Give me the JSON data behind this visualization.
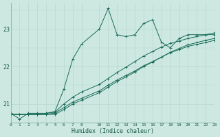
{
  "xlabel": "Humidex (Indice chaleur)",
  "bg_color": "#cce8e0",
  "line_color": "#1a6b5a",
  "grid_color_major": "#b8d8d0",
  "x_ticks": [
    0,
    1,
    2,
    3,
    4,
    5,
    6,
    7,
    8,
    10,
    11,
    12,
    13,
    14,
    15,
    16,
    17,
    18,
    19,
    20,
    21,
    22,
    23
  ],
  "x_tick_labels": [
    "0",
    "1",
    "2",
    "3",
    "4",
    "5",
    "6",
    "7",
    "8",
    "10",
    "11",
    "12",
    "13",
    "14",
    "15",
    "16",
    "17",
    "18",
    "19",
    "20",
    "21",
    "22",
    "23"
  ],
  "yticks": [
    21,
    22,
    23
  ],
  "ylim": [
    20.5,
    23.7
  ],
  "xlim": [
    0,
    23
  ],
  "line1_x": [
    0,
    1,
    2,
    3,
    4,
    5,
    6,
    7,
    8,
    10,
    11,
    12,
    13,
    14,
    15,
    16,
    17,
    18,
    19,
    20,
    21,
    22,
    23
  ],
  "line1_y": [
    20.75,
    20.6,
    20.75,
    20.75,
    20.75,
    20.8,
    21.4,
    22.2,
    22.6,
    23.0,
    23.55,
    22.85,
    22.8,
    22.85,
    23.15,
    23.25,
    22.65,
    22.5,
    22.75,
    22.85,
    22.85,
    22.85,
    22.85
  ],
  "line2_x": [
    0,
    1,
    2,
    3,
    4,
    5,
    6,
    7,
    8,
    10,
    11,
    12,
    13,
    14,
    15,
    16,
    17,
    18,
    19,
    20,
    21,
    22,
    23
  ],
  "line2_y": [
    20.72,
    20.72,
    20.72,
    20.72,
    20.72,
    20.72,
    20.85,
    21.0,
    21.1,
    21.3,
    21.45,
    21.6,
    21.72,
    21.85,
    22.0,
    22.12,
    22.25,
    22.38,
    22.48,
    22.58,
    22.64,
    22.7,
    22.75
  ],
  "line3_x": [
    0,
    1,
    2,
    3,
    4,
    5,
    6,
    7,
    8,
    10,
    11,
    12,
    13,
    14,
    15,
    16,
    17,
    18,
    19,
    20,
    21,
    22,
    23
  ],
  "line3_y": [
    20.72,
    20.72,
    20.72,
    20.72,
    20.75,
    20.78,
    21.0,
    21.18,
    21.32,
    21.52,
    21.68,
    21.84,
    21.98,
    22.13,
    22.28,
    22.4,
    22.52,
    22.62,
    22.68,
    22.75,
    22.8,
    22.85,
    22.9
  ],
  "line4_x": [
    0,
    1,
    2,
    3,
    4,
    5,
    6,
    7,
    8,
    10,
    11,
    12,
    13,
    14,
    15,
    16,
    17,
    18,
    19,
    20,
    21,
    22,
    23
  ],
  "line4_y": [
    20.72,
    20.72,
    20.72,
    20.72,
    20.72,
    20.76,
    20.9,
    21.05,
    21.15,
    21.35,
    21.5,
    21.64,
    21.76,
    21.88,
    22.02,
    22.13,
    22.25,
    22.37,
    22.45,
    22.54,
    22.59,
    22.64,
    22.7
  ]
}
